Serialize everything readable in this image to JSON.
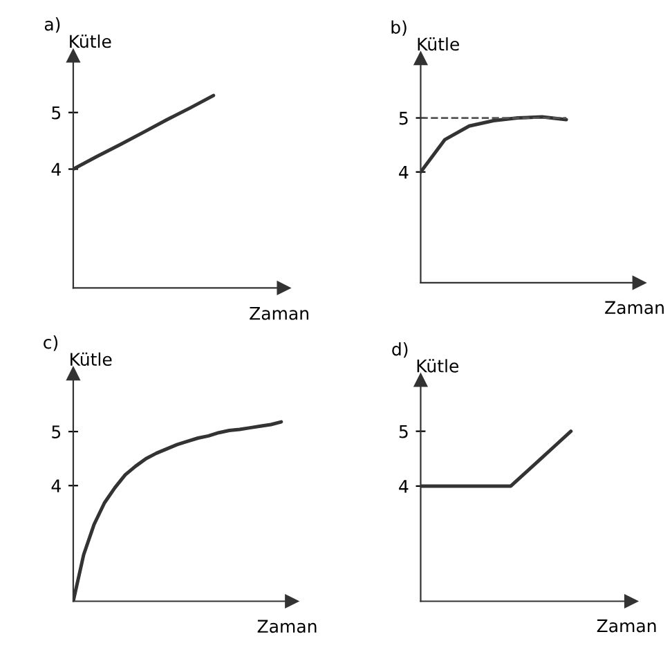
{
  "chart_data": [
    {
      "type": "line",
      "title": "a)",
      "xlabel": "Zaman",
      "ylabel": "Kütle",
      "categories": [
        null,
        null,
        null,
        null,
        null,
        null,
        null,
        null,
        null
      ],
      "series": [
        {
          "color": "#333333",
          "values": [
            4.0,
            4.22,
            4.43,
            4.65,
            4.87,
            5.08,
            5.3,
            null,
            null
          ]
        }
      ],
      "ylim": [
        1.9,
        6.0
      ],
      "yticks": [
        4,
        5
      ],
      "tick_labels": "y",
      "grid": false,
      "legend": false
    },
    {
      "type": "line",
      "title": "b)",
      "xlabel": "Zaman",
      "ylabel": "Kütle",
      "categories": [
        null,
        null,
        null,
        null,
        null,
        null,
        null,
        null,
        null
      ],
      "series": [
        {
          "color": "#333333",
          "values": [
            4.0,
            4.6,
            4.85,
            4.95,
            5.0,
            5.02,
            4.97,
            null,
            null
          ]
        }
      ],
      "ylim": [
        1.95,
        6.1
      ],
      "yticks": [
        4,
        5
      ],
      "tick_labels": "y",
      "grid": false,
      "legend": false,
      "ref_lines": [
        {
          "axis": "y",
          "value": 5,
          "color": "#555555",
          "line_style": "dashed"
        }
      ]
    },
    {
      "type": "line",
      "title": "c)",
      "xlabel": "Zaman",
      "ylabel": "Kütle",
      "categories": [
        null,
        null,
        null,
        null,
        null,
        null,
        null,
        null,
        null,
        null,
        null,
        null,
        null,
        null,
        null,
        null,
        null,
        null,
        null,
        null,
        null
      ],
      "series": [
        {
          "color": "#333333",
          "values": [
            1.86,
            2.72,
            3.28,
            3.68,
            3.96,
            4.2,
            4.36,
            4.5,
            4.6,
            4.68,
            4.76,
            4.82,
            4.88,
            4.92,
            4.98,
            5.02,
            5.04,
            5.07,
            5.1,
            5.13,
            5.18
          ]
        }
      ],
      "ylim": [
        1.86,
        6.07
      ],
      "yticks": [
        4,
        5
      ],
      "tick_labels": "y",
      "grid": false,
      "legend": false
    },
    {
      "type": "line",
      "title": "d)",
      "xlabel": "Zaman",
      "ylabel": "Kütle",
      "categories": [
        null,
        null,
        null,
        null,
        null,
        null,
        null,
        null,
        null,
        null,
        null,
        null,
        null,
        null
      ],
      "series": [
        {
          "color": "#333333",
          "values": [
            4.0,
            4.0,
            4.0,
            4.0,
            4.0,
            4.0,
            4.0,
            4.25,
            4.5,
            4.75,
            5.0,
            null,
            null,
            null
          ]
        }
      ],
      "ylim": [
        1.9,
        5.93
      ],
      "yticks": [
        4,
        5
      ],
      "tick_labels": "y",
      "grid": false,
      "legend": false
    }
  ]
}
